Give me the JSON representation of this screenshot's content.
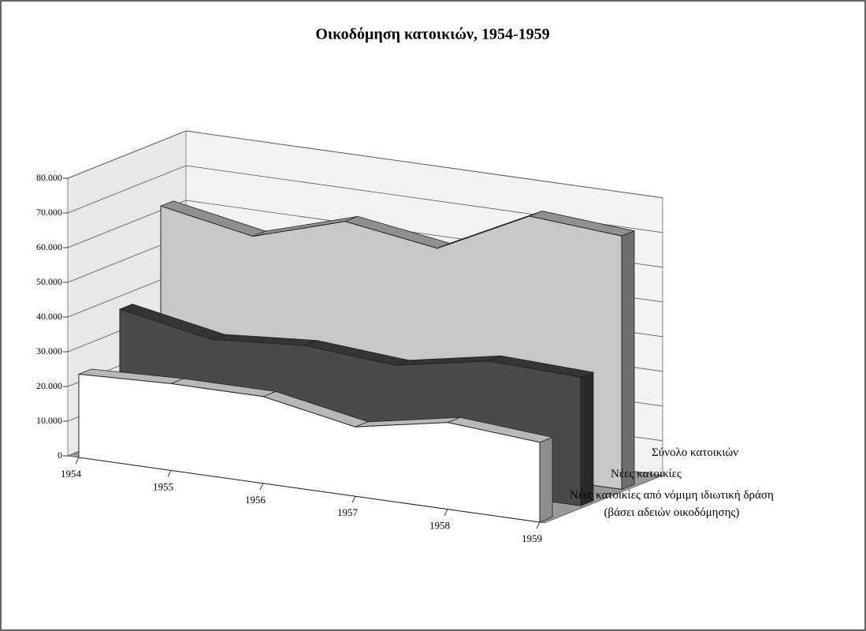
{
  "chart_data": {
    "type": "area3d",
    "title": "Οικοδόμηση κατοικιών, 1954-1959",
    "categories": [
      "1954",
      "1955",
      "1956",
      "1957",
      "1958",
      "1959"
    ],
    "series": [
      {
        "name": "Σύνολο κατοικιών",
        "color": "#c8c8c8",
        "values": [
          63000,
          58000,
          66000,
          62000,
          75000,
          73000
        ]
      },
      {
        "name": "Νέες κατοικίες",
        "color": "#4a4a4a",
        "values": [
          38000,
          33000,
          35000,
          33000,
          38000,
          37000
        ]
      },
      {
        "name": "Νέες κατοικίες από νόμιμη ιδιωτική δράση\n(βάσει αδειών οικοδόμησης)",
        "color": "#ffffff",
        "values": [
          24000,
          25000,
          25000,
          20000,
          25000,
          23000
        ]
      }
    ],
    "ylim": [
      0,
      80000
    ],
    "yticks": [
      0,
      {
        "value": 10000,
        "label": "10.000"
      },
      {
        "value": 20000,
        "label": "20.000"
      },
      {
        "value": 30000,
        "label": "30.000"
      },
      {
        "value": 40000,
        "label": "40.000"
      },
      {
        "value": 50000,
        "label": "50.000"
      },
      {
        "value": 60000,
        "label": "60.000"
      },
      {
        "value": 70000,
        "label": "70.000"
      },
      {
        "value": 80000,
        "label": "80.000"
      }
    ],
    "grid": true
  }
}
